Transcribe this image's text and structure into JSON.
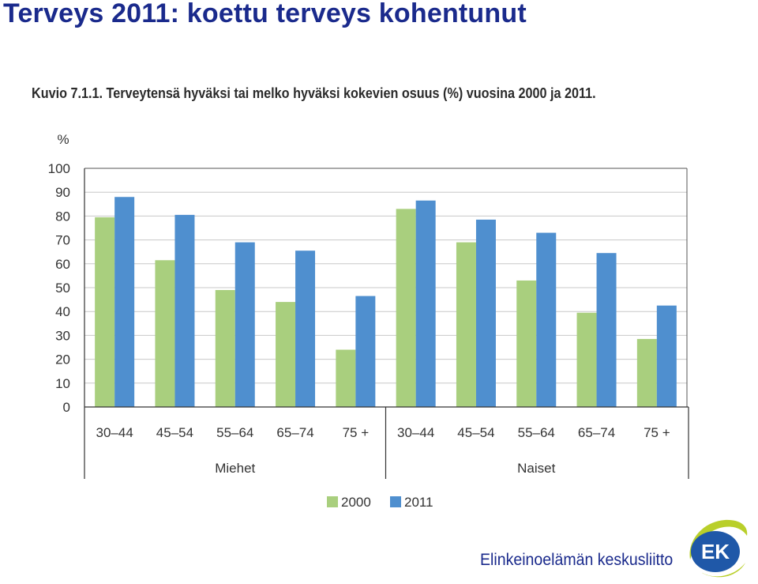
{
  "slide": {
    "title": "Terveys 2011: koettu terveys kohentunut"
  },
  "chart_data": {
    "type": "bar",
    "title": "Kuvio 7.1.1. Terveytensä hyväksi tai melko hyväksi kokevien osuus (%) vuosina 2000 ja 2011.",
    "ylabel": "%",
    "xlabel": "",
    "ylim": [
      0,
      100
    ],
    "yticks": [
      0,
      10,
      20,
      30,
      40,
      50,
      60,
      70,
      80,
      90,
      100
    ],
    "grid": true,
    "legend_position": "bottom",
    "categories": [
      "30–44",
      "45–54",
      "55–64",
      "65–74",
      "75 +",
      "30–44",
      "45–54",
      "55–64",
      "65–74",
      "75 +"
    ],
    "groups": [
      {
        "label": "Miehet",
        "category_count": 5
      },
      {
        "label": "Naiset",
        "category_count": 5
      }
    ],
    "series": [
      {
        "name": "2000",
        "color": "#a9cf7e",
        "values": [
          79.5,
          61.5,
          49,
          44,
          24,
          83,
          69,
          53,
          39.5,
          28.5
        ]
      },
      {
        "name": "2011",
        "color": "#4f8fcf",
        "values": [
          88,
          80.5,
          69,
          65.5,
          46.5,
          86.5,
          78.5,
          73,
          64.5,
          42.5
        ]
      }
    ]
  },
  "footer": {
    "organization": "Elinkeinoelämän keskusliitto",
    "logo_text": "EK",
    "logo_colors": {
      "ring": "#b9cf2a",
      "badge": "#1f58a8",
      "text": "#ffffff"
    }
  }
}
